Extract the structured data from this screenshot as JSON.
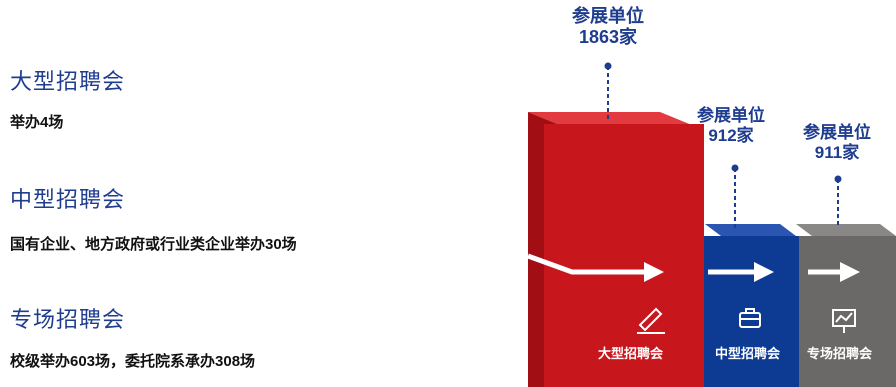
{
  "fairs": [
    {
      "title": "大型招聘会",
      "desc": "举办4场"
    },
    {
      "title": "中型招聘会",
      "desc": "国有企业、地方政府或行业类企业举办30场"
    },
    {
      "title": "专场招聘会",
      "desc": "校级举办603场，委托院系承办308场"
    }
  ],
  "callouts": [
    {
      "label": "参展单位",
      "count": "1863家"
    },
    {
      "label": "参展单位",
      "count": "912家"
    },
    {
      "label": "参展单位",
      "count": "911家"
    }
  ],
  "blocks": [
    {
      "label": "大型招聘会",
      "color": "#c8161d",
      "icon": "pencil-icon"
    },
    {
      "label": "中型招聘会",
      "color": "#0d3a92",
      "icon": "briefcase-icon"
    },
    {
      "label": "专场招聘会",
      "color": "#6b6868",
      "icon": "chart-board-icon"
    }
  ]
}
